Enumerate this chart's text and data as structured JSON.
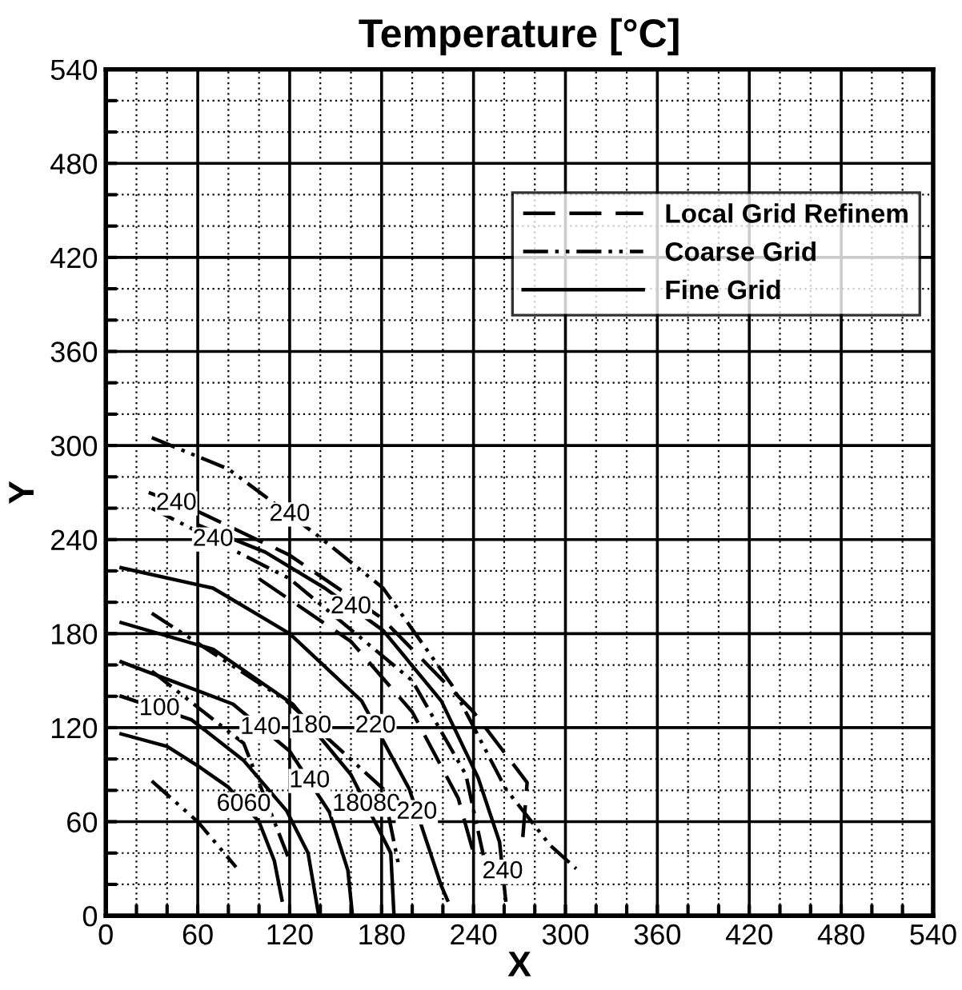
{
  "chart_data": {
    "type": "line",
    "title": "Temperature [°C]",
    "xlabel": "X",
    "ylabel": "Y",
    "xlim": [
      0,
      540
    ],
    "ylim": [
      0,
      540
    ],
    "xticks": [
      0,
      {
        "value": 20,
        "label": null
      },
      {
        "value": 40,
        "label": null
      },
      60,
      {
        "value": 80,
        "label": null
      },
      {
        "value": 100,
        "label": null
      },
      120,
      {
        "value": 140,
        "label": null
      },
      {
        "value": 160,
        "label": null
      },
      180,
      {
        "value": 200,
        "label": null
      },
      {
        "value": 220,
        "label": null
      },
      240,
      {
        "value": 260,
        "label": null
      },
      {
        "value": 280,
        "label": null
      },
      300,
      {
        "value": 320,
        "label": null
      },
      {
        "value": 340,
        "label": null
      },
      360,
      {
        "value": 380,
        "label": null
      },
      {
        "value": 400,
        "label": null
      },
      420,
      {
        "value": 440,
        "label": null
      },
      {
        "value": 460,
        "label": null
      },
      480,
      {
        "value": 500,
        "label": null
      },
      {
        "value": 520,
        "label": null
      },
      540
    ],
    "yticks": [
      0,
      {
        "value": 20,
        "label": null
      },
      {
        "value": 40,
        "label": null
      },
      60,
      {
        "value": 80,
        "label": null
      },
      {
        "value": 100,
        "label": null
      },
      120,
      {
        "value": 140,
        "label": null
      },
      {
        "value": 160,
        "label": null
      },
      180,
      {
        "value": 200,
        "label": null
      },
      {
        "value": 220,
        "label": null
      },
      240,
      {
        "value": 260,
        "label": null
      },
      {
        "value": 280,
        "label": null
      },
      300,
      {
        "value": 320,
        "label": null
      },
      {
        "value": 340,
        "label": null
      },
      360,
      {
        "value": 380,
        "label": null
      },
      {
        "value": 400,
        "label": null
      },
      420,
      {
        "value": 440,
        "label": null
      },
      {
        "value": 460,
        "label": null
      },
      480,
      {
        "value": 500,
        "label": null
      },
      {
        "value": 520,
        "label": null
      },
      540
    ],
    "grid": true,
    "legend": "top right",
    "series": [
      {
        "name": "Local Grid Refinem",
        "color": "#000000",
        "line_style": "dashed",
        "x": [
          28,
          60,
          120,
          180,
          240,
          275,
          272
        ],
        "values": [
          270,
          258,
          230,
          190,
          130,
          85,
          48
        ]
      },
      {
        "color": "#000000",
        "line_style": "dashed",
        "x": [
          100,
          160,
          200,
          230,
          240
        ],
        "values": [
          215,
          175,
          130,
          75,
          40
        ]
      },
      {
        "name": "Coarse Grid",
        "color": "#000000",
        "line_style": "dashdot",
        "x": [
          30,
          80,
          139,
          181,
          226,
          261,
          290,
          307
        ],
        "values": [
          305,
          285,
          242,
          209,
          147,
          81,
          45,
          30
        ]
      },
      {
        "color": "#000000",
        "line_style": "dashdot",
        "x": [
          30,
          120,
          200,
          235,
          247
        ],
        "values": [
          260,
          215,
          150,
          90,
          36
        ]
      },
      {
        "color": "#000000",
        "line_style": "dashdot",
        "x": [
          30,
          118,
          181,
          191
        ],
        "values": [
          193,
          137,
          81,
          33
        ]
      },
      {
        "color": "#000000",
        "line_style": "dashdot",
        "x": [
          30,
          90,
          120
        ],
        "values": [
          156,
          110,
          35
        ]
      },
      {
        "color": "#000000",
        "line_style": "dashdot",
        "x": [
          30,
          60,
          85
        ],
        "values": [
          86,
          60,
          31
        ]
      },
      {
        "name": "Fine Grid",
        "color": "#000000",
        "line_style": "solid",
        "x": [
          10,
          40,
          61,
          80,
          100,
          110,
          115
        ],
        "values": [
          116,
          108,
          95,
          82,
          60,
          35,
          10
        ]
      },
      {
        "color": "#000000",
        "line_style": "solid",
        "x": [
          10,
          56,
          90,
          118,
          132,
          139
        ],
        "values": [
          140,
          125,
          99,
          67,
          40,
          0
        ]
      },
      {
        "color": "#000000",
        "line_style": "solid",
        "x": [
          10,
          83,
          120,
          146,
          158,
          161
        ],
        "values": [
          162,
          135,
          105,
          66,
          29,
          0
        ]
      },
      {
        "color": "#000000",
        "line_style": "solid",
        "x": [
          10,
          70,
          122,
          160,
          186,
          188
        ],
        "values": [
          187,
          170,
          135,
          90,
          40,
          2
        ]
      },
      {
        "color": "#000000",
        "line_style": "solid",
        "x": [
          10,
          70,
          120,
          167,
          198,
          219,
          223
        ],
        "values": [
          222,
          209,
          180,
          137,
          81,
          19,
          10
        ]
      },
      {
        "color": "#000000",
        "line_style": "solid",
        "x": [
          61,
          104,
          143,
          181,
          219,
          243,
          257,
          261
        ],
        "values": [
          249,
          232,
          209,
          182,
          137,
          88,
          47,
          10
        ]
      }
    ],
    "annotations": [
      {
        "text": "240",
        "x": 46,
        "y": 263
      },
      {
        "text": "240",
        "x": 120,
        "y": 256
      },
      {
        "text": "240",
        "x": 70,
        "y": 240
      },
      {
        "text": "240",
        "x": 160,
        "y": 197
      },
      {
        "text": "100",
        "x": 35,
        "y": 132
      },
      {
        "text": "140",
        "x": 101,
        "y": 120
      },
      {
        "text": "180",
        "x": 134,
        "y": 121
      },
      {
        "text": "220",
        "x": 176,
        "y": 121
      },
      {
        "text": "6060",
        "x": 90,
        "y": 71
      },
      {
        "text": "140",
        "x": 133,
        "y": 86
      },
      {
        "text": "18080",
        "x": 170,
        "y": 71
      },
      {
        "text": "220",
        "x": 203,
        "y": 66
      },
      {
        "text": "240",
        "x": 259,
        "y": 28
      }
    ]
  }
}
